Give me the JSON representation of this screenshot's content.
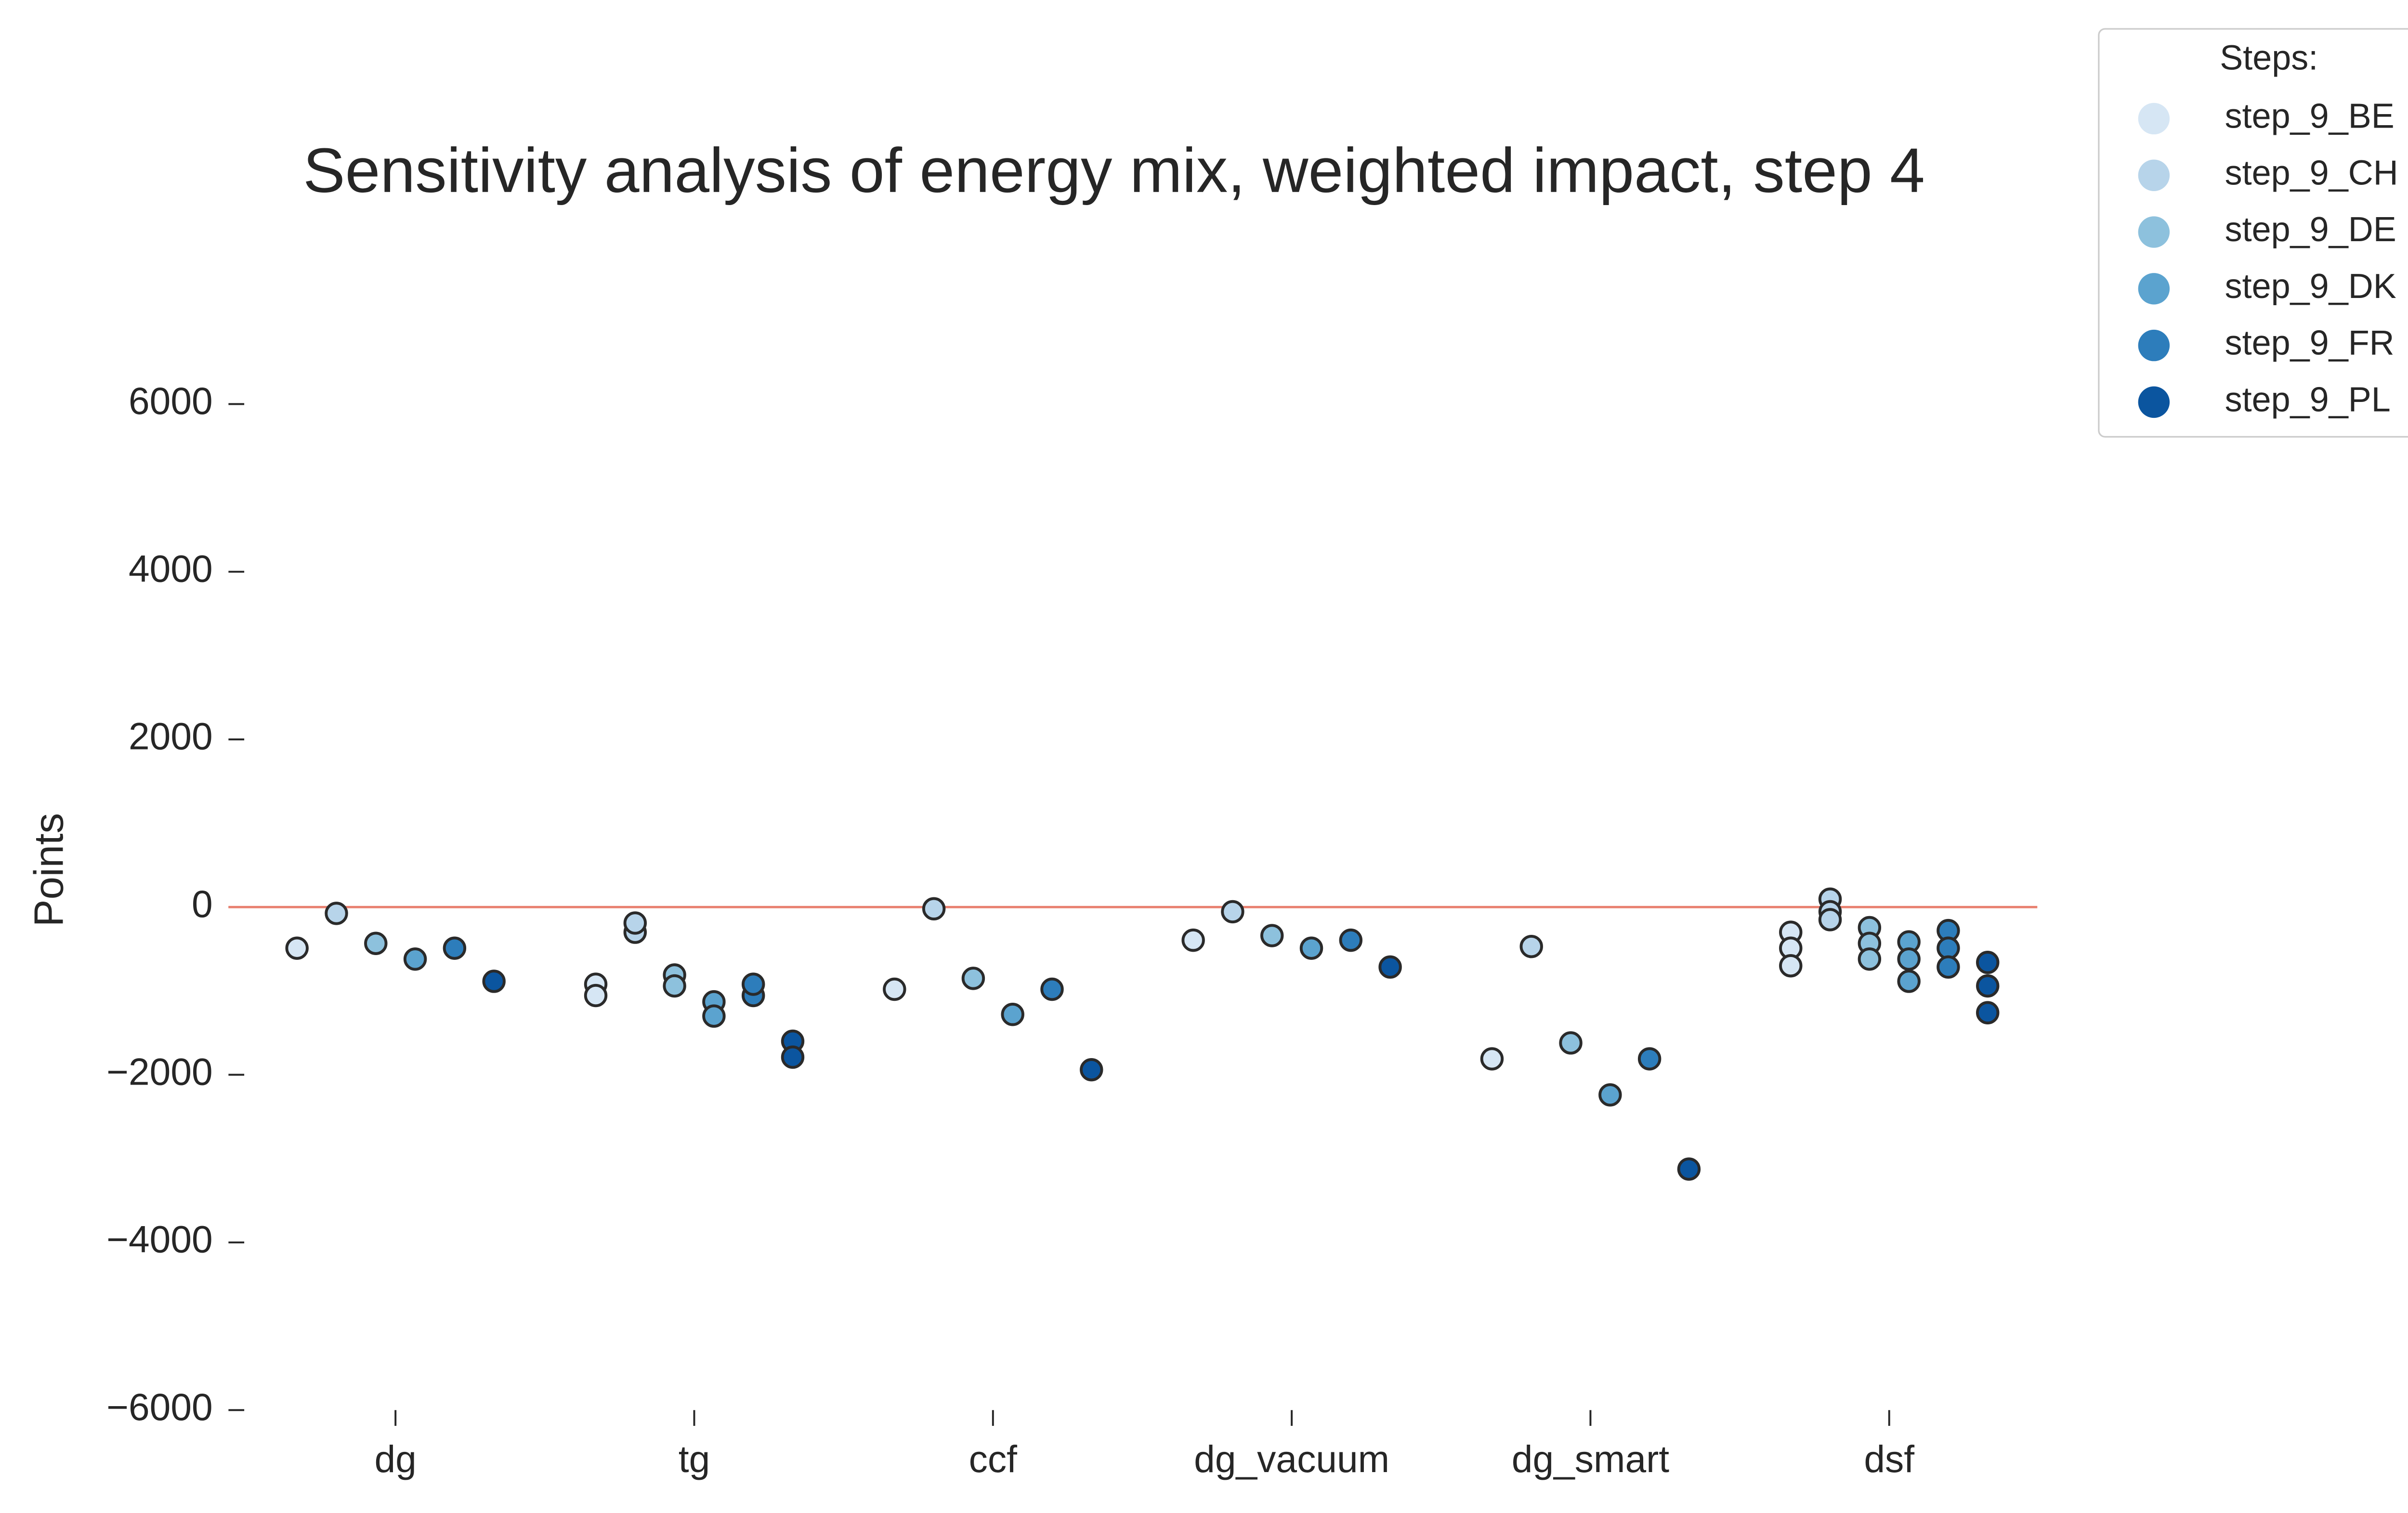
{
  "chart_data": {
    "type": "strip",
    "title": "Sensitivity analysis of energy mix, weighted impact, step 4",
    "y_label": "Points",
    "legend_title": "Steps:",
    "legend": "outside-upper-right",
    "categories": [
      "dg",
      "tg",
      "ccf",
      "dg_vacuum",
      "dg_smart",
      "dsf"
    ],
    "ylim": [
      -6000,
      7000
    ],
    "yticks": [
      {
        "value": 6000,
        "label": "6000"
      },
      {
        "value": 4000,
        "label": "4000"
      },
      {
        "value": 2000,
        "label": "2000"
      },
      0,
      {
        "value": -2000,
        "label": "−2000"
      },
      {
        "value": -4000,
        "label": "−4000"
      },
      {
        "value": -6000,
        "label": "−6000"
      }
    ],
    "hline": 0,
    "hline_color": "#e8806f",
    "series": [
      {
        "name": "step_9_BE",
        "color": "#d6e6f4",
        "values": [
          [
            -490
          ],
          [
            -920,
            -1055
          ],
          [
            -980
          ],
          [
            -395
          ],
          [
            -1810
          ],
          [
            -300,
            -490,
            -700
          ]
        ]
      },
      {
        "name": "step_9_CH",
        "color": "#b7d4ea",
        "values": [
          [
            -75
          ],
          [
            -300,
            -190
          ],
          [
            -20
          ],
          [
            -55
          ],
          [
            -470
          ],
          [
            95,
            -55,
            -150
          ]
        ]
      },
      {
        "name": "step_9_DE",
        "color": "#8dc1dd",
        "values": [
          [
            -433
          ],
          [
            -810,
            -940
          ],
          [
            -850
          ],
          [
            -340
          ],
          [
            -1620
          ],
          [
            -245,
            -433,
            -620
          ]
        ]
      },
      {
        "name": "step_9_DK",
        "color": "#5ba3cf",
        "values": [
          [
            -620
          ],
          [
            -1130,
            -1300
          ],
          [
            -1280
          ],
          [
            -490
          ],
          [
            -2240
          ],
          [
            -415,
            -620,
            -885
          ]
        ]
      },
      {
        "name": "step_9_FR",
        "color": "#2d7dbb",
        "values": [
          [
            -490
          ],
          [
            -1055,
            -920
          ],
          [
            -980
          ],
          [
            -395
          ],
          [
            -1810
          ],
          [
            -280,
            -490,
            -715
          ]
        ]
      },
      {
        "name": "step_9_PL",
        "color": "#0b559f",
        "values": [
          [
            -885
          ],
          [
            -1600,
            -1790
          ],
          [
            -1940
          ],
          [
            -715
          ],
          [
            -3125
          ],
          [
            -660,
            -940,
            -1260
          ]
        ]
      }
    ]
  }
}
